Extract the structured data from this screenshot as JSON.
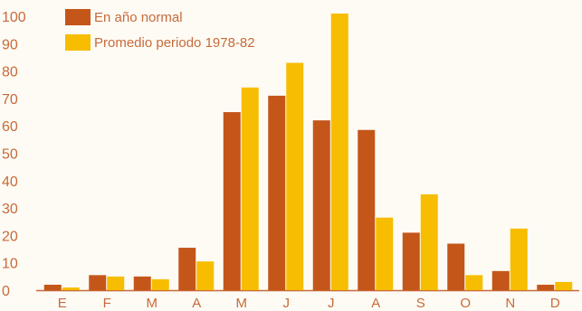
{
  "chart_data": {
    "type": "bar",
    "categories": [
      "E",
      "F",
      "M",
      "A",
      "M",
      "J",
      "J",
      "A",
      "S",
      "O",
      "N",
      "D"
    ],
    "y_ticks": [
      "0",
      "10",
      "20",
      "30",
      "40",
      "50",
      "60",
      "70",
      "80",
      "90",
      "100"
    ],
    "ylim": [
      0,
      100
    ],
    "grid": false,
    "legend_position": "top-left",
    "series": [
      {
        "name": "En año normal",
        "color": "#c4561a",
        "values": [
          2,
          5.5,
          5,
          15.5,
          65,
          71,
          62,
          58.5,
          21,
          17,
          7,
          2
        ]
      },
      {
        "name": "Promedio periodo 1978-82",
        "color": "#f7bd00",
        "values": [
          1,
          5,
          4,
          10.5,
          74,
          83,
          101,
          26.5,
          35,
          5.5,
          22.5,
          3
        ]
      }
    ],
    "title": "",
    "xlabel": "",
    "ylabel": ""
  }
}
